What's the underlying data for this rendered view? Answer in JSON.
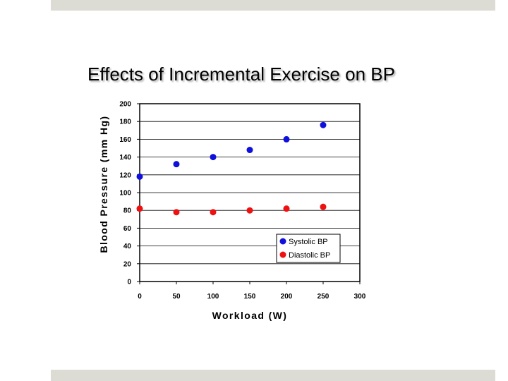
{
  "slide": {
    "title": "Effects of Incremental Exercise on BP"
  },
  "chart_data": {
    "type": "scatter",
    "title": "Effects of Incremental Exercise on BP",
    "xlabel": "Workload (W)",
    "ylabel": "Blood Pressure (mm Hg)",
    "xlim": [
      0,
      300
    ],
    "ylim": [
      0,
      200
    ],
    "x_ticks": [
      0,
      50,
      100,
      150,
      200,
      250,
      300
    ],
    "y_ticks": [
      0,
      20,
      40,
      60,
      80,
      100,
      120,
      140,
      160,
      180,
      200
    ],
    "grid": true,
    "legend_position": "bottom-right",
    "series": [
      {
        "name": "Systolic BP",
        "color": "#1010dd",
        "x": [
          0,
          50,
          100,
          150,
          200,
          250
        ],
        "y": [
          118,
          132,
          140,
          148,
          160,
          176
        ]
      },
      {
        "name": "Diastolic BP",
        "color": "#ee1111",
        "x": [
          0,
          50,
          100,
          150,
          200,
          250
        ],
        "y": [
          82,
          78,
          78,
          80,
          82,
          84
        ]
      }
    ]
  }
}
